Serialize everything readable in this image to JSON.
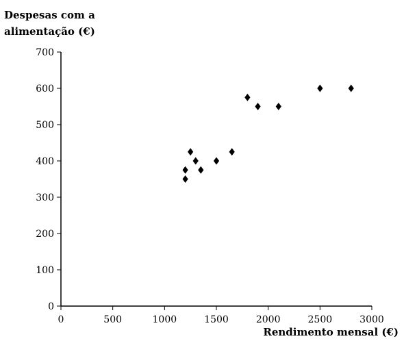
{
  "chart_data": {
    "type": "scatter",
    "title": "",
    "ylabel": "Despesas com a\nalimentação (€)",
    "xlabel": "Rendimento mensal (€)",
    "xlim": [
      0,
      3000
    ],
    "ylim": [
      0,
      700
    ],
    "xticks": [
      0,
      500,
      1000,
      1500,
      2000,
      2500,
      3000
    ],
    "yticks": [
      0,
      100,
      200,
      300,
      400,
      500,
      600,
      700
    ],
    "grid": false,
    "marker": "diamond",
    "color": "#000000",
    "points": [
      {
        "x": 1200,
        "y": 350
      },
      {
        "x": 1200,
        "y": 375
      },
      {
        "x": 1250,
        "y": 425
      },
      {
        "x": 1300,
        "y": 400
      },
      {
        "x": 1350,
        "y": 375
      },
      {
        "x": 1500,
        "y": 400
      },
      {
        "x": 1650,
        "y": 425
      },
      {
        "x": 1800,
        "y": 575
      },
      {
        "x": 1900,
        "y": 550
      },
      {
        "x": 2100,
        "y": 550
      },
      {
        "x": 2500,
        "y": 600
      },
      {
        "x": 2800,
        "y": 600
      }
    ]
  }
}
